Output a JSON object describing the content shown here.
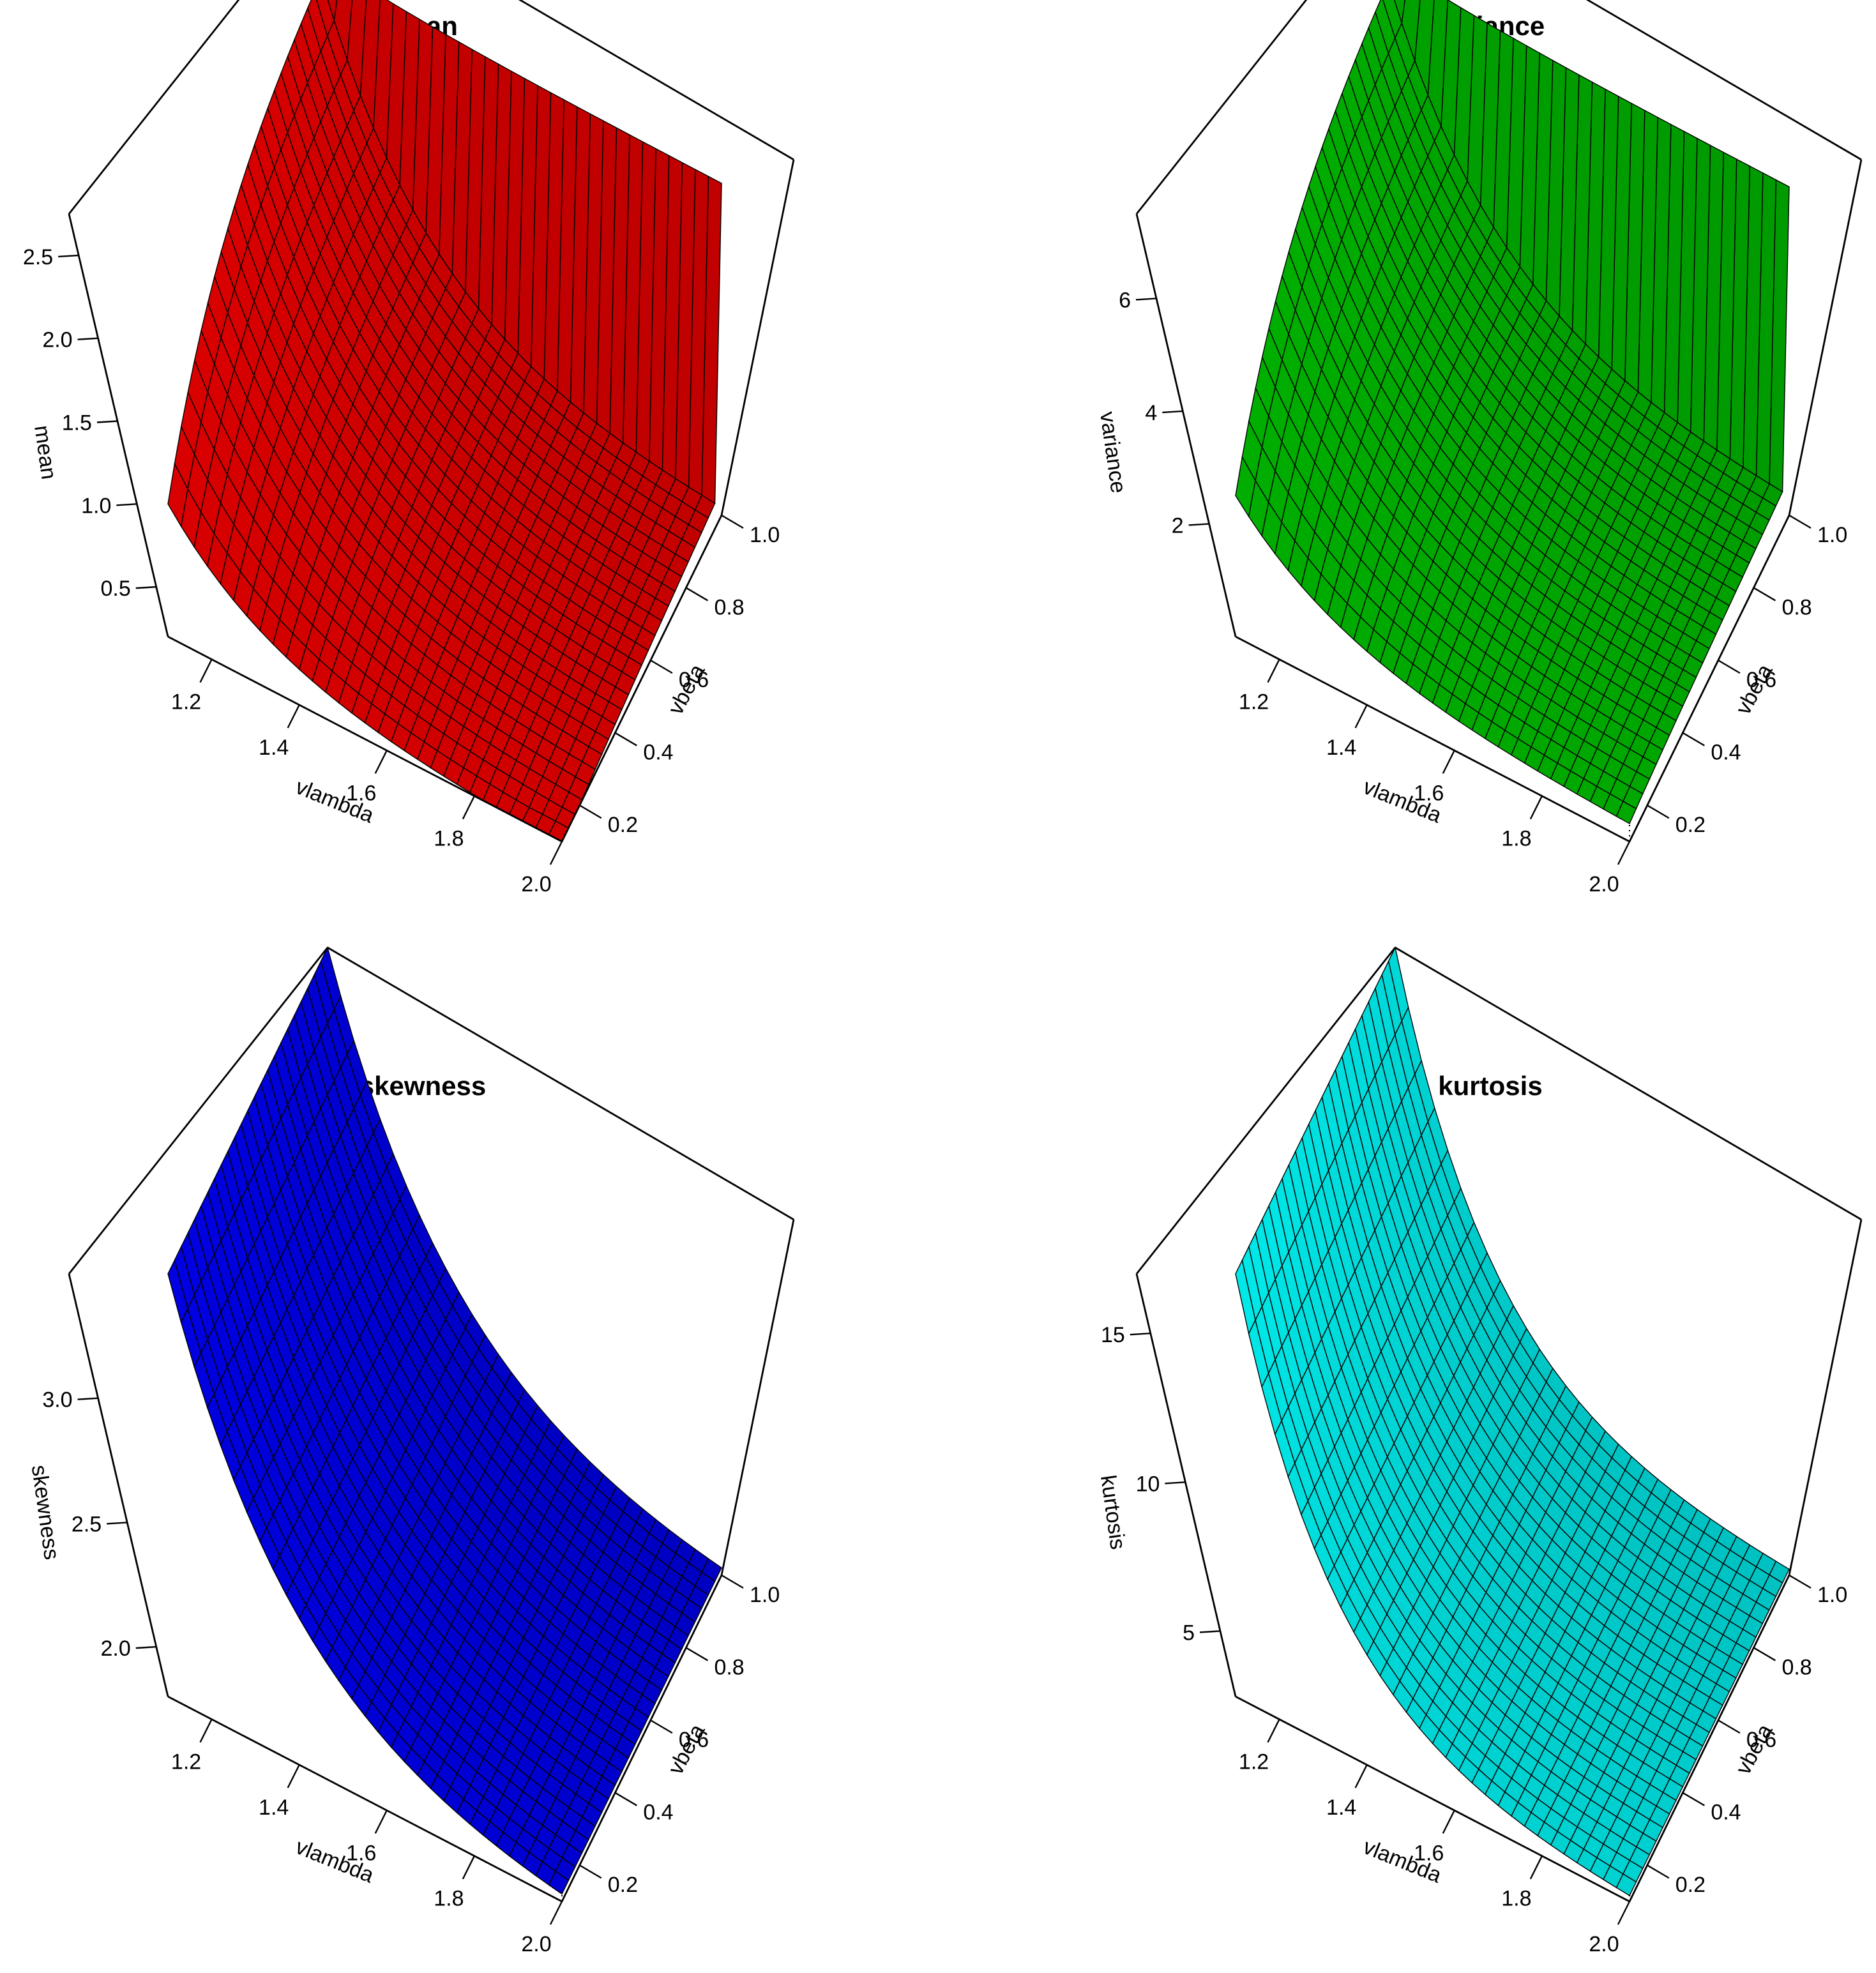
{
  "chart_data": [
    {
      "type": "surface3d",
      "title": "mean",
      "xlabel": "vlambda",
      "ylabel": "vbeta",
      "zlabel": "mean",
      "xlim": [
        1.1,
        2.0
      ],
      "ylim": [
        0.1,
        1.0
      ],
      "zlim": [
        0.2,
        2.75
      ],
      "x_ticks": [
        "1.2",
        "1.4",
        "1.6",
        "1.8",
        "2.0"
      ],
      "y_ticks": [
        "0.2",
        "0.4",
        "0.6",
        "0.8",
        "1.0"
      ],
      "z_ticks": [
        "0.5",
        "1.0",
        "1.5",
        "2.0",
        "2.5"
      ],
      "z_tick_values": [
        0.5,
        1.0,
        1.5,
        2.0,
        2.5
      ],
      "color": "#ff0000",
      "shape": "ridge",
      "z_corners": {
        "lambda_min_beta_min": 1.0,
        "lambda_min_beta_max": 2.3,
        "lambda_max_beta_max": 0.3
      },
      "z_max": 2.3
    },
    {
      "type": "surface3d",
      "title": "variance",
      "xlabel": "vlambda",
      "ylabel": "vbeta",
      "zlabel": "variance",
      "xlim": [
        1.1,
        2.0
      ],
      "ylim": [
        0.1,
        1.0
      ],
      "zlim": [
        0.0,
        7.5
      ],
      "x_ticks": [
        "1.2",
        "1.4",
        "1.6",
        "1.8",
        "2.0"
      ],
      "y_ticks": [
        "0.2",
        "0.4",
        "0.6",
        "0.8",
        "1.0"
      ],
      "z_ticks": [
        "2",
        "4",
        "6"
      ],
      "z_tick_values": [
        2,
        4,
        6
      ],
      "color": "#00cd00",
      "shape": "ridge",
      "z_corners": {
        "lambda_min_beta_min": 2.5,
        "lambda_min_beta_max": 6.1,
        "lambda_max_beta_max": 0.5
      },
      "z_max": 6.1
    },
    {
      "type": "surface3d",
      "title": "skewness",
      "xlabel": "vlambda",
      "ylabel": "vbeta",
      "zlabel": "skewness",
      "xlim": [
        1.1,
        2.0
      ],
      "ylim": [
        0.1,
        1.0
      ],
      "zlim": [
        1.8,
        3.5
      ],
      "x_ticks": [
        "1.2",
        "1.4",
        "1.6",
        "1.8",
        "2.0"
      ],
      "y_ticks": [
        "0.2",
        "0.4",
        "0.6",
        "0.8",
        "1.0"
      ],
      "z_ticks": [
        "2.0",
        "2.5",
        "3.0"
      ],
      "z_tick_values": [
        2.0,
        2.5,
        3.0
      ],
      "color": "#0000ff",
      "shape": "decay",
      "z_corners": {
        "lambda_min": 3.5,
        "lambda_max": 1.83
      },
      "decay_rate": 3.0
    },
    {
      "type": "surface3d",
      "title": "kurtosis",
      "xlabel": "vlambda",
      "ylabel": "vbeta",
      "zlabel": "kurtosis",
      "xlim": [
        1.1,
        2.0
      ],
      "ylim": [
        0.1,
        1.0
      ],
      "zlim": [
        2.8,
        17.0
      ],
      "x_ticks": [
        "1.2",
        "1.4",
        "1.6",
        "1.8",
        "2.0"
      ],
      "y_ticks": [
        "0.2",
        "0.4",
        "0.6",
        "0.8",
        "1.0"
      ],
      "z_ticks": [
        "5",
        "10",
        "15"
      ],
      "z_tick_values": [
        5,
        10,
        15
      ],
      "color": "#00ffff",
      "shape": "decay",
      "z_corners": {
        "lambda_min": 17.0,
        "lambda_max": 3.0
      },
      "decay_rate": 4.0
    }
  ]
}
